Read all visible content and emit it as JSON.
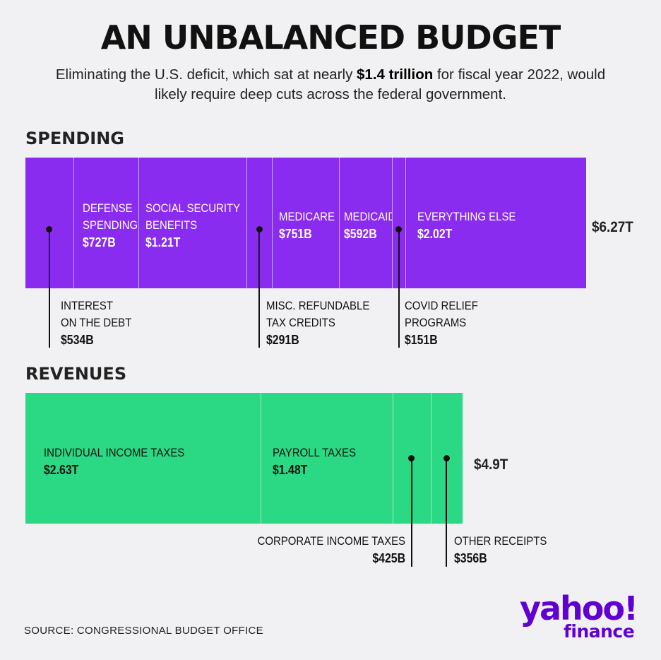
{
  "title": "AN UNBALANCED BUDGET",
  "subtitle": {
    "before": "Eliminating the U.S. deficit, which sat at nearly ",
    "highlight": "$1.4 trillion",
    "after": " for fiscal year 2022, would likely require deep cuts across the federal government."
  },
  "colors": {
    "spending": "#8a2cf0",
    "revenues": "#2bd884",
    "brand": "#6001d2"
  },
  "chart_data": [
    {
      "type": "bar",
      "orientation": "horizontal-stacked",
      "title": "SPENDING",
      "total_label": "$6.27T",
      "series": [
        {
          "label": "INTEREST ON THE DEBT",
          "display": "$534B",
          "value": 534
        },
        {
          "label": "DEFENSE SPENDING",
          "display": "$727B",
          "value": 727
        },
        {
          "label": "SOCIAL SECURITY BENEFITS",
          "display": "$1.21T",
          "value": 1210
        },
        {
          "label": "MISC. REFUNDABLE TAX CREDITS",
          "display": "$291B",
          "value": 291
        },
        {
          "label": "MEDICARE",
          "display": "$751B",
          "value": 751
        },
        {
          "label": "MEDICAID",
          "display": "$592B",
          "value": 592
        },
        {
          "label": "COVID RELIEF PROGRAMS",
          "display": "$151B",
          "value": 151
        },
        {
          "label": "EVERYTHING ELSE",
          "display": "$2.02T",
          "value": 2020
        }
      ]
    },
    {
      "type": "bar",
      "orientation": "horizontal-stacked",
      "title": "REVENUES",
      "total_label": "$4.9T",
      "series": [
        {
          "label": "INDIVIDUAL INCOME TAXES",
          "display": "$2.63T",
          "value": 2630
        },
        {
          "label": "PAYROLL TAXES",
          "display": "$1.48T",
          "value": 1480
        },
        {
          "label": "CORPORATE INCOME TAXES",
          "display": "$425B",
          "value": 425
        },
        {
          "label": "OTHER RECEIPTS",
          "display": "$356B",
          "value": 356
        }
      ]
    }
  ],
  "spending": {
    "defense": {
      "l1": "DEFENSE",
      "l2": "SPENDING"
    },
    "social_security": {
      "l1": "SOCIAL SECURITY",
      "l2": "BENEFITS"
    },
    "interest": {
      "l1": "INTEREST",
      "l2": "ON THE DEBT"
    },
    "misc": {
      "l1": "MISC. REFUNDABLE",
      "l2": "TAX CREDITS"
    },
    "covid": {
      "l1": "COVID RELIEF",
      "l2": "PROGRAMS"
    }
  },
  "source": "SOURCE:  CONGRESSIONAL BUDGET OFFICE",
  "logo": {
    "line1": "yahoo!",
    "line2": "finance"
  }
}
